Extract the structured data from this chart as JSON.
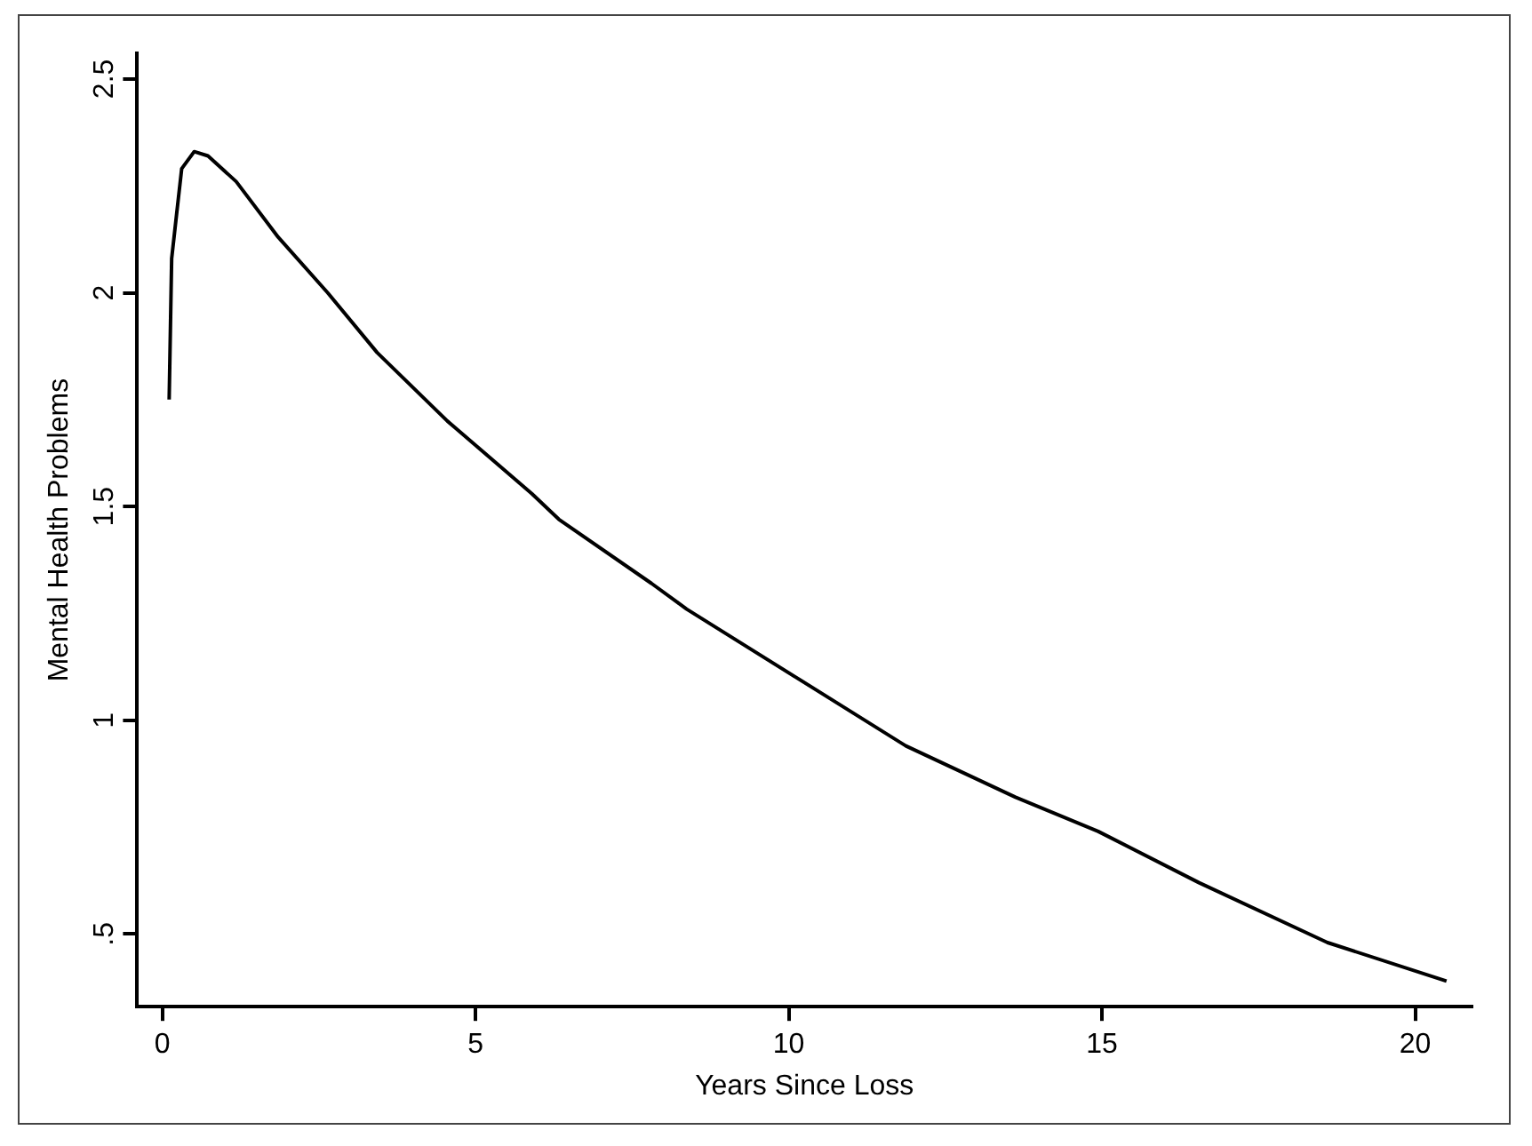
{
  "chart_data": {
    "type": "line",
    "xlabel": "Years Since Loss",
    "ylabel": "Mental Health Problems",
    "xlim": [
      -0.4,
      20.9
    ],
    "xticks": [
      0,
      5,
      10,
      15,
      20
    ],
    "ylim": [
      0.33,
      2.56
    ],
    "yticks": [
      {
        "value": 0.5,
        "label": ".5"
      },
      1,
      1.5,
      2,
      2.5
    ],
    "grid": false,
    "legend": false,
    "marker": "none",
    "line_style": "solid",
    "series": [
      {
        "color": "#000000",
        "x": [
          0.11,
          0.15,
          0.31,
          0.51,
          0.73,
          1.18,
          1.85,
          2.64,
          3.43,
          4.55,
          5.9,
          6.33,
          7.81,
          8.37,
          10.12,
          11.87,
          13.62,
          14.94,
          16.55,
          18.6,
          20.5
        ],
        "values": [
          1.75,
          2.08,
          2.29,
          2.33,
          2.32,
          2.26,
          2.13,
          2.0,
          1.86,
          1.7,
          1.53,
          1.47,
          1.32,
          1.26,
          1.1,
          0.94,
          0.82,
          0.74,
          0.62,
          0.48,
          0.39
        ]
      }
    ]
  }
}
